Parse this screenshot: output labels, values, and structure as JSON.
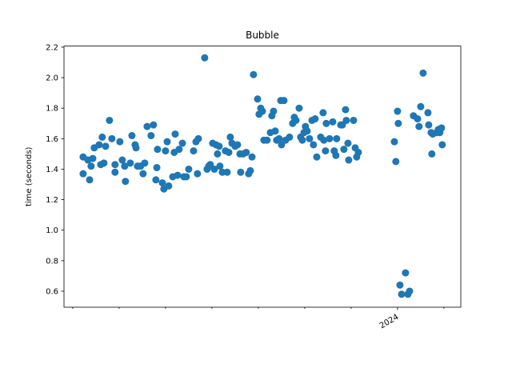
{
  "chart_data": {
    "type": "scatter",
    "title": "Bubble",
    "y_label": "time (seconds)",
    "color": "#1f77b4",
    "x": [
      2022.306,
      2022.306,
      2022.332,
      2022.341,
      2022.349,
      2022.358,
      2022.366,
      2022.392,
      2022.401,
      2022.409,
      2022.418,
      2022.427,
      2022.448,
      2022.461,
      2022.478,
      2022.478,
      2022.504,
      2022.517,
      2022.53,
      2022.534,
      2022.56,
      2022.569,
      2022.586,
      2022.591,
      2022.599,
      2022.616,
      2022.629,
      2022.638,
      2022.651,
      2022.672,
      2022.685,
      2022.698,
      2022.703,
      2022.707,
      2022.733,
      2022.741,
      2022.75,
      2022.759,
      2022.767,
      2022.789,
      2022.797,
      2022.802,
      2022.815,
      2022.823,
      2022.841,
      2022.849,
      2022.862,
      2022.875,
      2022.901,
      2022.914,
      2022.922,
      2022.927,
      2022.961,
      2022.974,
      2022.983,
      2022.991,
      2023.004,
      2023.013,
      2023.022,
      2023.03,
      2023.039,
      2023.043,
      2023.056,
      2023.073,
      2023.082,
      2023.091,
      2023.099,
      2023.108,
      2023.125,
      2023.138,
      2023.151,
      2023.155,
      2023.168,
      2023.185,
      2023.198,
      2023.207,
      2023.216,
      2023.224,
      2023.246,
      2023.254,
      2023.263,
      2023.272,
      2023.28,
      2023.297,
      2023.315,
      2023.323,
      2023.332,
      2023.341,
      2023.349,
      2023.362,
      2023.371,
      2023.375,
      2023.388,
      2023.397,
      2023.418,
      2023.435,
      2023.444,
      2023.453,
      2023.47,
      2023.478,
      2023.487,
      2023.496,
      2023.504,
      2023.513,
      2023.526,
      2023.539,
      2023.547,
      2023.556,
      2023.565,
      2023.586,
      2023.599,
      2023.603,
      2023.612,
      2023.616,
      2023.634,
      2023.651,
      2023.659,
      2023.668,
      2023.672,
      2023.694,
      2023.703,
      2023.711,
      2023.72,
      2023.724,
      2023.733,
      2023.737,
      2023.763,
      2023.772,
      2023.78,
      2023.789,
      2023.983,
      2023.991,
      2024.0,
      2024.004,
      2024.013,
      2024.022,
      2024.043,
      2024.056,
      2024.065,
      2024.086,
      2024.108,
      2024.116,
      2024.125,
      2024.138,
      2024.164,
      2024.168,
      2024.181,
      2024.185,
      2024.19,
      2024.211,
      2024.22,
      2024.228,
      2024.237,
      2024.241
    ],
    "values": [
      1.48,
      1.37,
      1.46,
      1.33,
      1.42,
      1.47,
      1.54,
      1.56,
      1.43,
      1.61,
      1.44,
      1.55,
      1.72,
      1.6,
      1.38,
      1.43,
      1.58,
      1.46,
      1.42,
      1.32,
      1.44,
      1.62,
      1.56,
      1.54,
      1.42,
      1.42,
      1.37,
      1.44,
      1.68,
      1.62,
      1.69,
      1.33,
      1.41,
      1.53,
      1.31,
      1.27,
      1.52,
      1.58,
      1.29,
      1.35,
      1.51,
      1.63,
      1.36,
      1.53,
      1.57,
      1.35,
      1.35,
      1.4,
      1.52,
      1.58,
      1.37,
      1.6,
      2.13,
      1.4,
      1.42,
      1.43,
      1.57,
      1.4,
      1.56,
      1.5,
      1.55,
      1.42,
      1.38,
      1.52,
      1.38,
      1.51,
      1.61,
      1.57,
      1.55,
      1.56,
      1.5,
      1.38,
      1.5,
      1.51,
      1.37,
      1.39,
      1.48,
      2.02,
      1.86,
      1.76,
      1.8,
      1.78,
      1.59,
      1.59,
      1.64,
      1.75,
      1.78,
      1.65,
      1.59,
      1.6,
      1.85,
      1.56,
      1.85,
      1.59,
      1.61,
      1.7,
      1.74,
      1.72,
      1.8,
      1.61,
      1.59,
      1.64,
      1.68,
      1.65,
      1.6,
      1.72,
      1.56,
      1.73,
      1.48,
      1.61,
      1.77,
      1.59,
      1.52,
      1.7,
      1.6,
      1.71,
      1.52,
      1.49,
      1.6,
      1.69,
      1.69,
      1.53,
      1.79,
      1.72,
      1.57,
      1.46,
      1.72,
      1.54,
      1.48,
      1.51,
      1.58,
      1.45,
      1.78,
      1.7,
      0.64,
      0.58,
      0.72,
      0.58,
      0.6,
      1.75,
      1.73,
      1.68,
      1.81,
      2.03,
      1.77,
      1.69,
      1.64,
      1.5,
      1.63,
      1.64,
      1.66,
      1.64,
      1.67,
      1.56
    ],
    "xlim": [
      2022.203,
      2024.341
    ],
    "xticks": [
      {
        "value": 2024,
        "label": "2024"
      }
    ],
    "xminorticks": [
      2022.25,
      2022.5,
      2022.75,
      2023,
      2023.25,
      2023.5,
      2023.75,
      2024.25
    ],
    "ylim": [
      0.495,
      2.207
    ],
    "yticks": [
      0.6,
      0.8,
      {
        "value": 1.0,
        "label": "1.0"
      },
      1.2,
      1.4,
      1.6,
      1.8,
      {
        "value": 2.0,
        "label": "2.0"
      },
      2.2
    ]
  }
}
